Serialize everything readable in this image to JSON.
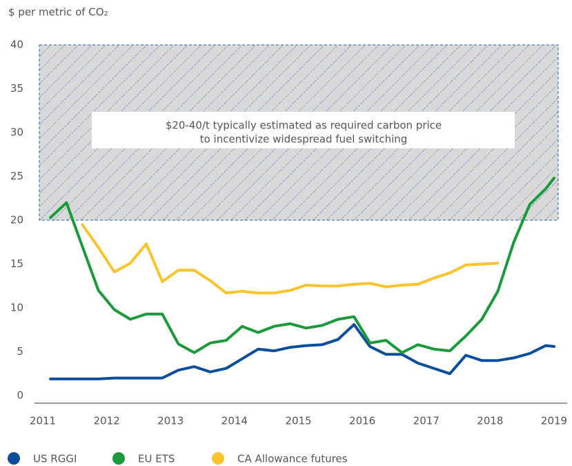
{
  "chart_data": {
    "type": "line",
    "subtitle": "$ per metric of CO₂",
    "annotation": [
      "$20-40/t typically estimated as required carbon price",
      "to incentivize widespread fuel switching"
    ],
    "band": [
      20,
      40
    ],
    "x": [
      2011.12,
      2011.37,
      2011.62,
      2011.87,
      2012.12,
      2012.37,
      2012.62,
      2012.87,
      2013.12,
      2013.37,
      2013.62,
      2013.87,
      2014.12,
      2014.37,
      2014.62,
      2014.87,
      2015.12,
      2015.37,
      2015.62,
      2015.87,
      2016.12,
      2016.37,
      2016.62,
      2016.87,
      2017.12,
      2017.37,
      2017.62,
      2017.87,
      2018.12,
      2018.37,
      2018.62,
      2018.87,
      2019.0
    ],
    "series": [
      {
        "name": "US RGGI",
        "color": "#0b4f9c",
        "values": [
          1.9,
          1.9,
          1.9,
          1.9,
          2.0,
          2.0,
          2.0,
          2.0,
          2.9,
          3.3,
          2.7,
          3.1,
          4.2,
          5.3,
          5.1,
          5.5,
          5.7,
          5.8,
          6.4,
          8.1,
          5.6,
          4.7,
          4.7,
          3.7,
          3.1,
          2.5,
          4.6,
          4.0,
          4.0,
          4.3,
          4.8,
          5.7,
          5.6
        ]
      },
      {
        "name": "EU ETS",
        "color": "#1a9a3a",
        "values": [
          20.3,
          22.0,
          17.0,
          12.0,
          9.8,
          8.7,
          9.3,
          9.3,
          5.9,
          4.9,
          6.0,
          6.3,
          7.9,
          7.2,
          7.9,
          8.2,
          7.7,
          8.0,
          8.7,
          9.0,
          6.0,
          6.3,
          4.9,
          5.8,
          5.3,
          5.1,
          6.8,
          8.7,
          11.9,
          17.5,
          21.8,
          23.6,
          24.8
        ]
      },
      {
        "name": "CA Allowance futures",
        "color": "#fcc42c",
        "values": [
          null,
          null,
          19.5,
          16.9,
          14.1,
          15.1,
          17.3,
          13.0,
          14.3,
          14.3,
          13.1,
          11.7,
          11.9,
          11.7,
          11.7,
          12.0,
          12.6,
          12.5,
          12.5,
          12.7,
          12.8,
          12.4,
          12.6,
          12.7,
          13.4,
          14.0,
          14.9,
          15.0,
          15.1,
          null,
          null,
          null,
          null
        ]
      }
    ],
    "xlim": [
      2011,
      2019
    ],
    "xticks": [
      2011,
      2012,
      2013,
      2014,
      2015,
      2016,
      2017,
      2018,
      2019
    ],
    "ylim": [
      0,
      40
    ],
    "yticks": [
      0,
      5,
      10,
      15,
      20,
      25,
      30,
      35,
      40
    ],
    "grid": false,
    "legend": "bottom"
  }
}
